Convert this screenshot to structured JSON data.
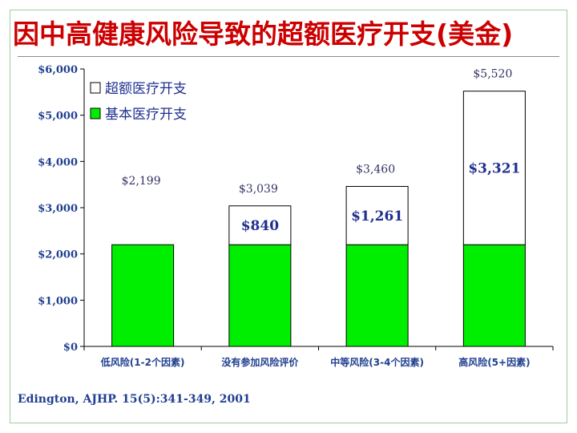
{
  "title": "因中高健康风险导致的超额医疗开支(美金)",
  "source": "Edington, AJHP. 15(5):341-349, 2001",
  "colors": {
    "title": "#cc0000",
    "base": "#00ee00",
    "excess": "#ffffff",
    "axis_text": "#1f3f8f",
    "label_text": "#333366"
  },
  "chart_data": {
    "type": "bar",
    "stacked": true,
    "categories": [
      "低风险(1-2个因素)",
      "没有参加风险评价",
      "中等风险(3-4个因素)",
      "高风险(5+因素)"
    ],
    "series": [
      {
        "name": "基本医疗开支",
        "values": [
          2199,
          2199,
          2199,
          2199
        ]
      },
      {
        "name": "超额医疗开支",
        "values": [
          0,
          840,
          1261,
          3321
        ]
      }
    ],
    "segment_labels": [
      "",
      "$840",
      "$1,261",
      "$3,321"
    ],
    "total_labels": [
      "$2,199",
      "$3,039",
      "$3,460",
      "$5,520"
    ],
    "y_ticks": [
      "$0",
      "$1,000",
      "$2,000",
      "$3,000",
      "$4,000",
      "$5,000",
      "$6,000"
    ],
    "ylim": [
      0,
      6000
    ],
    "legend_position": "top-left",
    "grid": false
  }
}
